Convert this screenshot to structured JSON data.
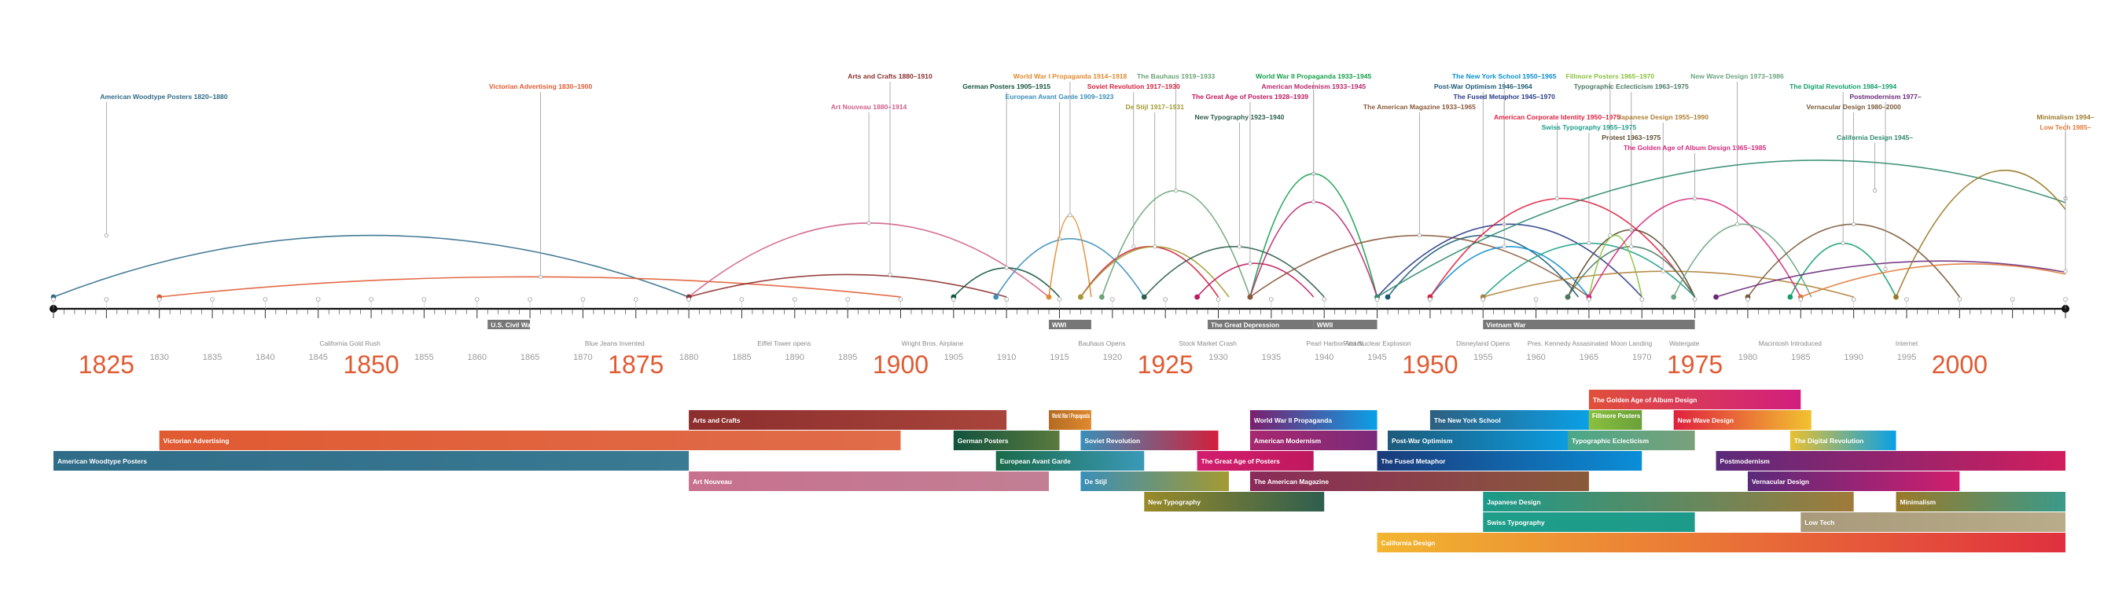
{
  "chart_data": {
    "type": "timeline",
    "axis": {
      "start": 1820,
      "end": 2010,
      "major_labels": [
        1825,
        1850,
        1875,
        1900,
        1925,
        1950,
        1975,
        2000
      ],
      "minor_labels": [
        1830,
        1835,
        1840,
        1845,
        1855,
        1860,
        1865,
        1870,
        1880,
        1885,
        1890,
        1895,
        1905,
        1910,
        1915,
        1920,
        1930,
        1935,
        1940,
        1945,
        1955,
        1960,
        1965,
        1970,
        1980,
        1985,
        1990,
        1995
      ]
    },
    "movements": [
      {
        "label": "American Woodtype Posters 1820–1880",
        "start": 1820,
        "end": 1880,
        "color": "#2f6c88",
        "peak": 1825,
        "h": 0.55,
        "row": 2
      },
      {
        "label": "Victorian Advertising 1830–1900",
        "start": 1830,
        "end": 1900,
        "color": "#e05a32",
        "peak": 1866,
        "h": 0.18,
        "row": 1
      },
      {
        "label": "Art Nouveau 1880–1914",
        "start": 1880,
        "end": 1914,
        "color": "#d0608a",
        "peak": 1897,
        "h": 0.66,
        "row": 3
      },
      {
        "label": "Arts and Crafts 1880–1910",
        "start": 1880,
        "end": 1910,
        "color": "#8c2e2e",
        "peak": 1899,
        "h": 0.2,
        "row": 0
      },
      {
        "label": "German Posters 1905–1915",
        "start": 1905,
        "end": 1915,
        "color": "#12533e",
        "peak": 1910,
        "h": 0.26,
        "row": 1
      },
      {
        "label": "European Avant Garde 1909–1923",
        "start": 1909,
        "end": 1923,
        "color": "#3a8fb8",
        "peak": 1915,
        "h": 0.52,
        "row": 2
      },
      {
        "label": "World War I Propaganda 1914–1918",
        "start": 1914,
        "end": 1918,
        "color": "#e08a2e",
        "peak": 1916,
        "h": 0.73,
        "row": 0
      },
      {
        "label": "Soviet Revolution 1917–1930",
        "start": 1917,
        "end": 1930,
        "color": "#d31f3c",
        "peak": 1922,
        "h": 0.45,
        "row": 1
      },
      {
        "label": "De Stijl 1917–1931",
        "start": 1917,
        "end": 1931,
        "color": "#a39a32",
        "peak": 1924,
        "h": 0.45,
        "row": 3
      },
      {
        "label": "The Bauhaus 1919–1933",
        "start": 1919,
        "end": 1933,
        "color": "#6aa476",
        "peak": 1926,
        "h": 0.95,
        "row": 0
      },
      {
        "label": "New Typography 1923–1940",
        "start": 1923,
        "end": 1940,
        "color": "#2e5e4e",
        "peak": 1932,
        "h": 0.45,
        "row": 4
      },
      {
        "label": "The Great Age of Posters 1928–1939",
        "start": 1928,
        "end": 1939,
        "color": "#c0185e",
        "peak": 1933,
        "h": 0.3,
        "row": 2
      },
      {
        "label": "World War II Propaganda 1933–1945",
        "start": 1933,
        "end": 1945,
        "color": "#129e47",
        "peak": 1939,
        "h": 1.1,
        "row": 0
      },
      {
        "label": "American Modernism 1933–1945",
        "start": 1933,
        "end": 1945,
        "color": "#b9286e",
        "peak": 1939,
        "h": 0.85,
        "row": 1
      },
      {
        "label": "The American Magazine 1933–1965",
        "start": 1933,
        "end": 1965,
        "color": "#8a5a3a",
        "peak": 1949,
        "h": 0.55,
        "row": 3
      },
      {
        "label": "Post-War Optimism 1946–1964",
        "start": 1946,
        "end": 1964,
        "color": "#1a5a76",
        "peak": 1955,
        "h": 0.55,
        "row": 1
      },
      {
        "label": "The Fused Metaphor 1945–1970",
        "start": 1945,
        "end": 1970,
        "color": "#2a3c88",
        "peak": 1957,
        "h": 0.65,
        "row": 2
      },
      {
        "label": "The New York School 1950–1965",
        "start": 1950,
        "end": 1965,
        "color": "#0a8fce",
        "peak": 1957,
        "h": 0.45,
        "row": 0
      },
      {
        "label": "American Corporate Identity 1950–1975",
        "start": 1950,
        "end": 1975,
        "color": "#e0203e",
        "peak": 1962,
        "h": 0.88,
        "row": 4
      },
      {
        "label": "Swiss Typography 1955–1975",
        "start": 1955,
        "end": 1975,
        "color": "#1e9e8a",
        "peak": 1965,
        "h": 0.48,
        "row": 5
      },
      {
        "label": "Japanese Design 1955–1990",
        "start": 1955,
        "end": 1990,
        "color": "#b08036",
        "peak": 1972,
        "h": 0.23,
        "row": 4
      },
      {
        "label": "Protest 1963–1975",
        "start": 1963,
        "end": 1975,
        "color": "#5a4a2a",
        "peak": 1969,
        "h": 0.6,
        "row": 6
      },
      {
        "label": "Typographic Eclecticism 1963–1975",
        "start": 1963,
        "end": 1975,
        "color": "#4a7a62",
        "peak": 1969,
        "h": 0.45,
        "row": 1
      },
      {
        "label": "Fillmore Posters 1965–1970",
        "start": 1965,
        "end": 1970,
        "color": "#8ac03e",
        "peak": 1967,
        "h": 0.55,
        "row": 0
      },
      {
        "label": "The Golden Age of Album Design 1965–1985",
        "start": 1965,
        "end": 1985,
        "color": "#d42a7e",
        "peak": 1975,
        "h": 0.88,
        "row": 7
      },
      {
        "label": "New Wave Design 1973–1986",
        "start": 1973,
        "end": 1986,
        "color": "#6aa480",
        "peak": 1979,
        "h": 0.65,
        "row": 0
      },
      {
        "label": "The Digital Revolution 1984–1994",
        "start": 1984,
        "end": 1994,
        "color": "#12a06a",
        "peak": 1989,
        "h": 0.48,
        "row": 1
      },
      {
        "label": "Vernacular Design 1980–2000",
        "start": 1980,
        "end": 2000,
        "color": "#7a5a3a",
        "peak": 1990,
        "h": 0.65,
        "row": 3
      },
      {
        "label": "Postmodernism 1977–",
        "start": 1977,
        "end": 2010,
        "color": "#6a2a7a",
        "peak": 1993,
        "h": 0.25,
        "row": 2
      },
      {
        "label": "California Design 1945–",
        "start": 1945,
        "end": 2010,
        "color": "#2e8a6e",
        "peak": 1992,
        "h": 0.95,
        "row": 6
      },
      {
        "label": "Minimalism 1994–",
        "start": 1994,
        "end": 2010,
        "color": "#9a7a2a",
        "peak": 2010,
        "h": 0.88,
        "row": 4
      },
      {
        "label": "Low Tech 1985–",
        "start": 1985,
        "end": 2010,
        "color": "#e07a3a",
        "peak": 2010,
        "h": 0.23,
        "row": 5
      }
    ],
    "eras": [
      {
        "label": "U.S. Civil War",
        "start": 1861,
        "end": 1865
      },
      {
        "label": "WWI",
        "start": 1914,
        "end": 1918
      },
      {
        "label": "The Great Depression",
        "start": 1929,
        "end": 1939
      },
      {
        "label": "WWII",
        "start": 1939,
        "end": 1945
      },
      {
        "label": "Vietnam War",
        "start": 1955,
        "end": 1975
      }
    ],
    "events": [
      {
        "label": "California Gold Rush",
        "year": 1848
      },
      {
        "label": "Blue Jeans Invented",
        "year": 1873
      },
      {
        "label": "Eiffel Tower opens",
        "year": 1889
      },
      {
        "label": "Wright Bros. Airplane",
        "year": 1903
      },
      {
        "label": "Bauhaus Opens",
        "year": 1919
      },
      {
        "label": "Stock Market Crash",
        "year": 1929
      },
      {
        "label": "Pearl Harbor Attack",
        "year": 1941
      },
      {
        "label": "First Nuclear Explosion",
        "year": 1945
      },
      {
        "label": "Disneyland Opens",
        "year": 1955
      },
      {
        "label": "Pres. Kennedy Assasinated",
        "year": 1963
      },
      {
        "label": "Moon Landing",
        "year": 1969
      },
      {
        "label": "Watergate",
        "year": 1974
      },
      {
        "label": "Macintosh Introduced",
        "year": 1984
      },
      {
        "label": "Internet",
        "year": 1995
      }
    ],
    "bars": [
      {
        "label": "The Golden Age of Album Design",
        "start": 1965,
        "end": 1985,
        "row": 0,
        "c1": "#e0503a",
        "c2": "#d11e7e"
      },
      {
        "label": "Arts and Crafts",
        "start": 1880,
        "end": 1910,
        "row": 1,
        "c1": "#8c2e2e",
        "c2": "#a8443a"
      },
      {
        "label": "World War I Propaganda",
        "start": 1914,
        "end": 1918,
        "row": 1,
        "c1": "#b36a22",
        "c2": "#e08a2e"
      },
      {
        "label": "World War II Propaganda",
        "start": 1933,
        "end": 1945,
        "row": 1,
        "c1": "#7a1f6e",
        "c2": "#0aa0e6"
      },
      {
        "label": "The New York School",
        "start": 1950,
        "end": 1965,
        "row": 1,
        "c1": "#2d5f80",
        "c2": "#0aa0e6"
      },
      {
        "label": "Fillmore Posters",
        "start": 1965,
        "end": 1970,
        "row": 1,
        "c1": "#8ac03e",
        "c2": "#6aa03a"
      },
      {
        "label": "New Wave Design",
        "start": 1973,
        "end": 1986,
        "row": 1,
        "c1": "#e0203e",
        "c2": "#f2c230"
      },
      {
        "label": "Victorian Advertising",
        "start": 1830,
        "end": 1900,
        "row": 2,
        "c1": "#e05a32",
        "c2": "#e06c4a"
      },
      {
        "label": "German Posters",
        "start": 1905,
        "end": 1915,
        "row": 2,
        "c1": "#12533e",
        "c2": "#5a7a3e"
      },
      {
        "label": "Soviet Revolution",
        "start": 1917,
        "end": 1930,
        "row": 2,
        "c1": "#3a8fb8",
        "c2": "#d31f3c"
      },
      {
        "label": "American Modernism",
        "start": 1933,
        "end": 1945,
        "row": 2,
        "c1": "#a8286e",
        "c2": "#7a2a7a"
      },
      {
        "label": "Post-War Optimism",
        "start": 1946,
        "end": 1964,
        "row": 2,
        "c1": "#1e5a7a",
        "c2": "#0aa0e6"
      },
      {
        "label": "Typographic Eclecticism",
        "start": 1963,
        "end": 1975,
        "row": 2,
        "c1": "#4aa88a",
        "c2": "#7aa07a"
      },
      {
        "label": "The Digital Revolution",
        "start": 1984,
        "end": 1994,
        "row": 2,
        "c1": "#e8c030",
        "c2": "#0aa0e6"
      },
      {
        "label": "American Woodtype Posters",
        "start": 1820,
        "end": 1880,
        "row": 3,
        "c1": "#2f6c88",
        "c2": "#3a7a92"
      },
      {
        "label": "European Avant Garde",
        "start": 1909,
        "end": 1923,
        "row": 3,
        "c1": "#1a6a4a",
        "c2": "#3a9ab8"
      },
      {
        "label": "The Great Age of Posters",
        "start": 1928,
        "end": 1939,
        "row": 3,
        "c1": "#d11e6e",
        "c2": "#c0185e"
      },
      {
        "label": "The Fused Metaphor",
        "start": 1945,
        "end": 1970,
        "row": 3,
        "c1": "#1a3a7a",
        "c2": "#0a8fd8"
      },
      {
        "label": "Postmodernism",
        "start": 1977,
        "end": 2010,
        "row": 3,
        "c1": "#5a2a7a",
        "c2": "#d11e5e"
      },
      {
        "label": "Art Nouveau",
        "start": 1880,
        "end": 1914,
        "row": 4,
        "c1": "#c7718e",
        "c2": "#c27f94"
      },
      {
        "label": "De Stijl",
        "start": 1917,
        "end": 1931,
        "row": 4,
        "c1": "#3a8fb8",
        "c2": "#a39a32"
      },
      {
        "label": "The American Magazine",
        "start": 1933,
        "end": 1965,
        "row": 4,
        "c1": "#8a2a5a",
        "c2": "#8a5a3a"
      },
      {
        "label": "Vernacular Design",
        "start": 1980,
        "end": 2000,
        "row": 4,
        "c1": "#5a2a7a",
        "c2": "#d11e6e"
      },
      {
        "label": "New Typography",
        "start": 1923,
        "end": 1940,
        "row": 5,
        "c1": "#9a8a2a",
        "c2": "#2e5e4e"
      },
      {
        "label": "Japanese Design",
        "start": 1955,
        "end": 1990,
        "row": 5,
        "c1": "#1a9a8a",
        "c2": "#a07a3a"
      },
      {
        "label": "Minimalism",
        "start": 1994,
        "end": 2010,
        "row": 5,
        "c1": "#9a7a2a",
        "c2": "#3a9a8a"
      },
      {
        "label": "Swiss Typography",
        "start": 1955,
        "end": 1975,
        "row": 6,
        "c1": "#1e9e8a",
        "c2": "#1e9a8a"
      },
      {
        "label": "Low Tech",
        "start": 1985,
        "end": 2010,
        "row": 6,
        "c1": "#a89a7a",
        "c2": "#b8ac8a"
      },
      {
        "label": "California Design",
        "start": 1945,
        "end": 2010,
        "row": 7,
        "c1": "#f2b630",
        "c2": "#e0303e"
      }
    ]
  }
}
